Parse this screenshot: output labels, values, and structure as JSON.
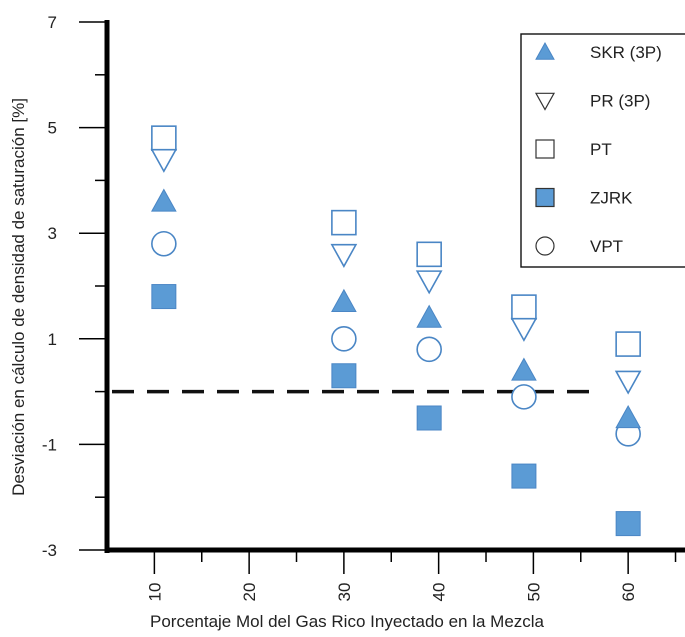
{
  "chart_data": {
    "type": "scatter",
    "title": "",
    "xlabel": "Porcentaje Mol del Gas Rico Inyectado en la Mezcla",
    "ylabel": "Desviación en cálculo de densidad de saturación [%]",
    "xlim": [
      5,
      66
    ],
    "ylim": [
      -3,
      7
    ],
    "x_ticks": [
      10,
      20,
      30,
      40,
      50,
      60
    ],
    "x_tick_labels": [
      "10",
      "20",
      "30",
      "40",
      "50",
      "60"
    ],
    "y_tick_labels": [
      {
        "value": 7,
        "label": "7"
      },
      {
        "value": 5,
        "label": "5"
      },
      {
        "value": 3,
        "label": "3"
      },
      {
        "value": 1,
        "label": "1"
      },
      {
        "value": -1,
        "label": "-1"
      },
      {
        "value": -3,
        "label": "-3"
      }
    ],
    "y_minor_ticks": [
      6,
      4,
      2,
      0,
      -2
    ],
    "reference_line": {
      "y": 0,
      "style": "dashed",
      "color": "#111111"
    },
    "legend_position": "top-right",
    "colors": {
      "fill": "#5b9bd5",
      "stroke": "#4a86c5",
      "axis": "#000000"
    },
    "series": [
      {
        "name": "SKR (3P)",
        "marker": "triangle-up-filled",
        "x": [
          11,
          30,
          39,
          49,
          60
        ],
        "y": [
          3.6,
          1.7,
          1.4,
          0.4,
          -0.5
        ]
      },
      {
        "name": "PR (3P)",
        "marker": "triangle-down-open",
        "x": [
          11,
          30,
          39,
          49,
          60
        ],
        "y": [
          4.4,
          2.6,
          2.1,
          1.2,
          0.2
        ]
      },
      {
        "name": "PT",
        "marker": "square-open",
        "x": [
          11,
          30,
          39,
          49,
          60
        ],
        "y": [
          4.8,
          3.2,
          2.6,
          1.6,
          0.9
        ]
      },
      {
        "name": "ZJRK",
        "marker": "square-filled",
        "x": [
          11,
          30,
          39,
          49,
          60
        ],
        "y": [
          1.8,
          0.3,
          -0.5,
          -1.6,
          -2.5
        ]
      },
      {
        "name": "VPT",
        "marker": "circle-open",
        "x": [
          11,
          30,
          39,
          49,
          60
        ],
        "y": [
          2.8,
          1.0,
          0.8,
          -0.1,
          -0.8
        ]
      }
    ]
  }
}
